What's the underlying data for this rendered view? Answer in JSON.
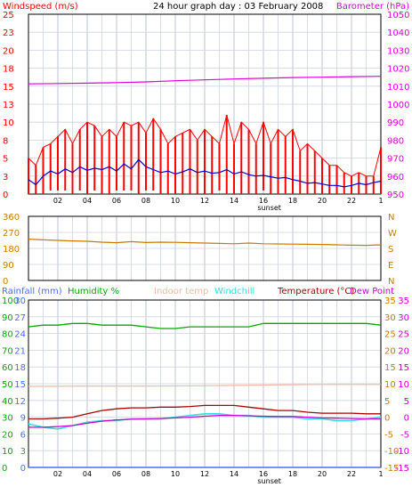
{
  "colors": {
    "wind": "#ff0000",
    "gust": "#ff0000",
    "avg_wind": "#0000cc",
    "barometer": "#e000e0",
    "wind_dir": "#cc7a00",
    "rainfall": "#4d6bff",
    "humidity": "#00aa00",
    "indoor_temp": "#f4b8a4",
    "windchill": "#33dde0",
    "temperature": "#aa0000",
    "dew_point": "#cc00cc",
    "grid": "#cfd4dc",
    "axis": "#000000"
  },
  "header": {
    "left": "Windspeed (m/s)",
    "center": "24 hour graph day : 03 February 2008",
    "right": "Barometer (hPa)"
  },
  "dir_labels": [
    "N",
    "W",
    "S",
    "E",
    "N"
  ],
  "dir_ticks": [
    "360",
    "270",
    "180",
    "90",
    "0"
  ],
  "sunset_label": "sunset",
  "x_ticks": [
    "02",
    "04",
    "06",
    "08",
    "10",
    "12",
    "14",
    "16",
    "18",
    "20",
    "22",
    "1"
  ],
  "legend3": {
    "rainfall": "Rainfall (mm)",
    "humidity": "Humidity %",
    "indoor": "Indoor temp",
    "windchill": "Windchill",
    "temperature": "Temperature (°C)",
    "dewpoint": "Dew Point"
  },
  "chart_data": [
    {
      "type": "line",
      "title": "24 hour graph day : 03 February 2008",
      "x_range_hours": [
        0,
        24
      ],
      "y_left": {
        "label": "Windspeed (m/s)",
        "ticks": [
          "25",
          "23",
          "20",
          "18",
          "15",
          "13",
          "10",
          "8",
          "5",
          "3",
          "0"
        ],
        "range": [
          0,
          25
        ]
      },
      "y_right": {
        "label": "Barometer (hPa)",
        "ticks": [
          "1050",
          "1040",
          "1030",
          "1020",
          "1010",
          "1000",
          "990",
          "980",
          "970",
          "960",
          "950"
        ],
        "range": [
          950,
          1050
        ]
      },
      "series": [
        {
          "name": "Windspeed (m/s)",
          "style": "gusts",
          "x": [
            0,
            0.5,
            1,
            1.5,
            2,
            2.5,
            3,
            3.5,
            4,
            4.5,
            5,
            5.5,
            6,
            6.5,
            7,
            7.5,
            8,
            8.5,
            9,
            9.5,
            10,
            10.5,
            11,
            11.5,
            12,
            12.5,
            13,
            13.5,
            14,
            14.5,
            15,
            15.5,
            16,
            16.5,
            17,
            17.5,
            18,
            18.5,
            19,
            19.5,
            20,
            20.5,
            21,
            21.5,
            22,
            22.5,
            23,
            23.5,
            24
          ],
          "low": [
            0,
            0,
            0,
            0.5,
            0.5,
            0.5,
            0,
            0.5,
            0,
            0.5,
            0,
            0,
            0.5,
            0.5,
            0.5,
            0,
            0.5,
            0.5,
            0,
            0,
            0,
            0,
            0,
            0,
            0,
            0,
            0.5,
            0,
            0,
            0,
            0,
            0,
            0.5,
            0,
            0,
            0,
            0,
            0,
            0,
            0,
            0,
            0,
            0,
            0,
            0,
            0,
            0,
            0,
            0
          ],
          "high": [
            5,
            4,
            6.5,
            7,
            8,
            9,
            7,
            9,
            10,
            9.5,
            8,
            9,
            8,
            10,
            9.5,
            10,
            8.5,
            10.5,
            9,
            7,
            8,
            8.5,
            9,
            7.5,
            9,
            8,
            7,
            11,
            7,
            10,
            9,
            7,
            10,
            7,
            9,
            8,
            9,
            6,
            7,
            6,
            5,
            4,
            4,
            3,
            2.5,
            3,
            2.5,
            2.5,
            6.5
          ]
        },
        {
          "name": "Average wind",
          "x": [
            0,
            0.5,
            1,
            1.5,
            2,
            2.5,
            3,
            3.5,
            4,
            4.5,
            5,
            5.5,
            6,
            6.5,
            7,
            7.5,
            8,
            8.5,
            9,
            9.5,
            10,
            10.5,
            11,
            11.5,
            12,
            12.5,
            13,
            13.5,
            14,
            14.5,
            15,
            15.5,
            16,
            16.5,
            17,
            17.5,
            18,
            18.5,
            19,
            19.5,
            20,
            20.5,
            21,
            21.5,
            22,
            22.5,
            23,
            23.5,
            24
          ],
          "y": [
            2,
            1.3,
            2.5,
            3.2,
            2.8,
            3.5,
            3,
            3.8,
            3.3,
            3.6,
            3.4,
            3.8,
            3.2,
            4.2,
            3.5,
            4.8,
            3.8,
            3.4,
            3,
            3.2,
            2.8,
            3.1,
            3.5,
            3,
            3.2,
            2.9,
            3,
            3.4,
            2.8,
            3.1,
            2.7,
            2.5,
            2.6,
            2.4,
            2.2,
            2.3,
            2,
            1.8,
            1.5,
            1.6,
            1.4,
            1.2,
            1.2,
            1,
            1.2,
            1.5,
            1.3,
            1.6,
            1.8
          ]
        },
        {
          "name": "Barometer (hPa)",
          "axis": "right",
          "x": [
            0,
            2,
            4,
            6,
            8,
            10,
            12,
            14,
            16,
            18,
            20,
            22,
            24
          ],
          "y": [
            1011.3,
            1011.5,
            1011.7,
            1012,
            1012.4,
            1013,
            1013.5,
            1014,
            1014.4,
            1014.8,
            1015,
            1015.3,
            1015.5
          ]
        }
      ]
    },
    {
      "type": "line",
      "y_left": {
        "ticks": [
          "360",
          "270",
          "180",
          "90",
          "0"
        ],
        "range": [
          0,
          360
        ]
      },
      "y_right": {
        "ticks": [
          "N",
          "W",
          "S",
          "E",
          "N"
        ]
      },
      "series": [
        {
          "name": "Wind direction",
          "x": [
            0,
            1,
            2,
            3,
            4,
            5,
            6,
            7,
            8,
            9,
            10,
            11,
            12,
            13,
            14,
            15,
            16,
            17,
            18,
            19,
            20,
            21,
            22,
            23,
            24
          ],
          "y": [
            232,
            228,
            225,
            222,
            220,
            215,
            212,
            218,
            213,
            215,
            214,
            212,
            210,
            208,
            206,
            210,
            206,
            205,
            204,
            203,
            202,
            200,
            198,
            197,
            200
          ]
        }
      ]
    },
    {
      "type": "line",
      "y_left": {
        "label": "Rainfall (mm)",
        "ticks": [
          "100",
          "90",
          "80",
          "70",
          "60",
          "50",
          "40",
          "30",
          "20",
          "10",
          "0"
        ],
        "range": [
          0,
          100
        ]
      },
      "y_left2": {
        "label": "Humidity %",
        "ticks": [
          "30",
          "27",
          "24",
          "21",
          "18",
          "15",
          "12",
          "9",
          "6",
          "3",
          "0"
        ],
        "range": [
          0,
          30
        ]
      },
      "y_right": {
        "label": "Temperature (°C)",
        "ticks": [
          "35",
          "30",
          "25",
          "20",
          "15",
          "10",
          "5",
          "0",
          "-5",
          "-10",
          "-15"
        ],
        "range": [
          -15,
          35
        ]
      },
      "series": [
        {
          "name": "Humidity %",
          "x": [
            0,
            1,
            2,
            3,
            4,
            5,
            6,
            7,
            8,
            9,
            10,
            11,
            12,
            13,
            14,
            15,
            16,
            17,
            18,
            19,
            20,
            21,
            22,
            23,
            24
          ],
          "y": [
            84,
            85,
            85,
            86,
            86,
            85,
            85,
            85,
            84,
            83,
            83,
            84,
            84,
            84,
            84,
            84,
            86,
            86,
            86,
            86,
            86,
            86,
            86,
            86,
            85
          ]
        },
        {
          "name": "Indoor temp",
          "axis": "right",
          "x": [
            0,
            4,
            8,
            12,
            16,
            20,
            24
          ],
          "y": [
            9.2,
            9.3,
            9.3,
            9.4,
            9.6,
            9.8,
            9.8
          ]
        },
        {
          "name": "Windchill",
          "axis": "right",
          "x": [
            0,
            1,
            2,
            3,
            4,
            5,
            6,
            7,
            8,
            9,
            10,
            11,
            12,
            13,
            14,
            15,
            16,
            17,
            18,
            19,
            20,
            21,
            22,
            23,
            24
          ],
          "y": [
            -2,
            -3,
            -3.5,
            -2.5,
            -1.5,
            -1,
            -1,
            -0.5,
            -0.5,
            -0.5,
            0,
            0.5,
            1,
            1,
            0.5,
            0.5,
            0,
            0,
            0,
            -0.5,
            -0.5,
            -1,
            -1,
            -0.5,
            0
          ]
        },
        {
          "name": "Temperature (°C)",
          "axis": "right",
          "x": [
            0,
            1,
            2,
            3,
            4,
            5,
            6,
            7,
            8,
            9,
            10,
            11,
            12,
            13,
            14,
            15,
            16,
            17,
            18,
            19,
            20,
            21,
            22,
            23,
            24
          ],
          "y": [
            -0.5,
            -0.5,
            -0.3,
            0,
            1,
            2,
            2.5,
            2.8,
            2.8,
            3,
            3,
            3.2,
            3.5,
            3.5,
            3.5,
            3,
            2.5,
            2,
            2,
            1.5,
            1.2,
            1.2,
            1.2,
            1,
            1
          ]
        },
        {
          "name": "Dew Point",
          "axis": "right",
          "x": [
            0,
            1,
            2,
            3,
            4,
            5,
            6,
            7,
            8,
            9,
            10,
            11,
            12,
            13,
            14,
            15,
            16,
            17,
            18,
            19,
            20,
            21,
            22,
            23,
            24
          ],
          "y": [
            -3,
            -3,
            -2.8,
            -2.5,
            -1.8,
            -1.2,
            -0.8,
            -0.6,
            -0.5,
            -0.4,
            -0.2,
            0,
            0.3,
            0.5,
            0.5,
            0.4,
            0.3,
            0.2,
            0.2,
            0,
            -0.2,
            -0.3,
            -0.4,
            -0.5,
            -0.5
          ]
        },
        {
          "name": "Rainfall (mm)",
          "x": [
            0,
            24
          ],
          "y": [
            0,
            0
          ]
        }
      ]
    }
  ]
}
